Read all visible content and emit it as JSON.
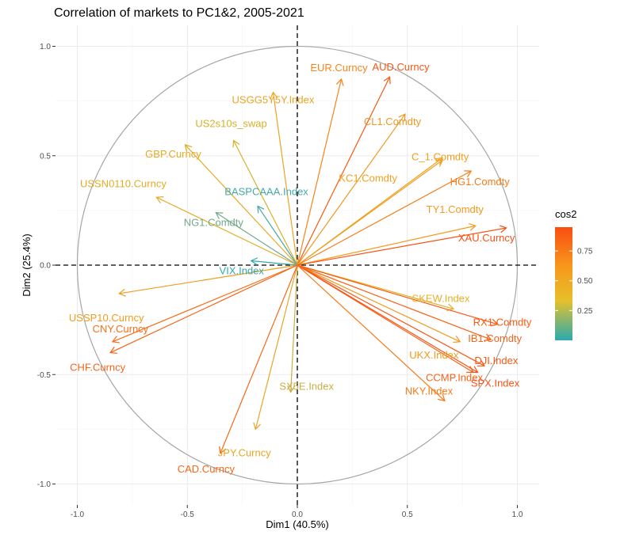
{
  "chart_data": {
    "type": "scatter",
    "subtype": "pca-correlation-circle",
    "title": "Correlation of markets to PC1&2, 2005-2021",
    "xlabel": "Dim1 (40.5%)",
    "ylabel": "Dim2 (25.4%)",
    "xlim": [
      -1.0,
      1.0
    ],
    "ylim": [
      -1.0,
      1.0
    ],
    "xticks": [
      "-1.0",
      "-0.5",
      "0.0",
      "0.5",
      "1.0"
    ],
    "yticks": [
      "-1.0",
      "-0.5",
      "0.0",
      "0.5",
      "1.0"
    ],
    "grid": true,
    "unit_circle": true,
    "reference_lines": [
      "x=0 dashed",
      "y=0 dashed"
    ],
    "color_scale": {
      "title": "cos2",
      "ticks": [
        "0.25",
        "0.50",
        "0.75"
      ],
      "gradient": [
        "#2aaab0",
        "#e6c02b",
        "#f7981c",
        "#f94d12"
      ],
      "range": [
        0.0,
        0.95
      ]
    },
    "legend_placement": "right",
    "points": [
      {
        "name": "EUR.Curncy",
        "x": 0.2,
        "y": 0.85,
        "cos2": 0.77,
        "color": "#f8841a"
      },
      {
        "name": "AUD.Curncy",
        "x": 0.42,
        "y": 0.86,
        "cos2": 0.92,
        "color": "#f95714"
      },
      {
        "name": "USGG5Y5Y.Index",
        "x": -0.11,
        "y": 0.79,
        "cos2": 0.64,
        "color": "#eca323"
      },
      {
        "name": "CL1.Comdty",
        "x": 0.49,
        "y": 0.69,
        "cos2": 0.72,
        "color": "#f0981f"
      },
      {
        "name": "US2s10s_swap",
        "x": -0.29,
        "y": 0.57,
        "cos2": 0.41,
        "color": "#d8b02b"
      },
      {
        "name": "C_1.Comdty",
        "x": 0.66,
        "y": 0.49,
        "cos2": 0.68,
        "color": "#f0a020"
      },
      {
        "name": "GBP.Curncy",
        "x": -0.51,
        "y": 0.55,
        "cos2": 0.56,
        "color": "#e7aa26"
      },
      {
        "name": "KC1.Comdty",
        "x": 0.66,
        "y": 0.48,
        "cos2": 0.66,
        "color": "#efa121"
      },
      {
        "name": "HG1.Comdty",
        "x": 0.79,
        "y": 0.43,
        "cos2": 0.81,
        "color": "#f77b18"
      },
      {
        "name": "USSN0110.Curncy",
        "x": -0.64,
        "y": 0.31,
        "cos2": 0.51,
        "color": "#e4ad28"
      },
      {
        "name": "BASPCAAA.Index",
        "x": -0.18,
        "y": 0.27,
        "cos2": 0.1,
        "color": "#47a9a6"
      },
      {
        "name": "NG1.Comdty",
        "x": -0.37,
        "y": 0.24,
        "cos2": 0.19,
        "color": "#74a98c"
      },
      {
        "name": "TY1.Comdty",
        "x": 0.81,
        "y": 0.18,
        "cos2": 0.69,
        "color": "#f39a1e"
      },
      {
        "name": "XAU.Curncy",
        "x": 0.95,
        "y": 0.17,
        "cos2": 0.93,
        "color": "#f95114"
      },
      {
        "name": "VIX.Index",
        "x": -0.21,
        "y": 0.02,
        "cos2": 0.05,
        "color": "#30a8ae"
      },
      {
        "name": "USSP10.Curncy",
        "x": -0.81,
        "y": -0.13,
        "cos2": 0.67,
        "color": "#f09d1f"
      },
      {
        "name": "SKEW.Index",
        "x": 0.71,
        "y": -0.2,
        "cos2": 0.55,
        "color": "#e6b026"
      },
      {
        "name": "RX1.Comdty",
        "x": 0.91,
        "y": -0.27,
        "cos2": 0.9,
        "color": "#f95a14"
      },
      {
        "name": "IB1.Comdty",
        "x": 0.88,
        "y": -0.34,
        "cos2": 0.88,
        "color": "#f86316"
      },
      {
        "name": "CNY.Curncy",
        "x": -0.84,
        "y": -0.35,
        "cos2": 0.84,
        "color": "#f86f17"
      },
      {
        "name": "UKX.Index",
        "x": 0.74,
        "y": -0.35,
        "cos2": 0.69,
        "color": "#f19b1f"
      },
      {
        "name": "CHF.Curncy",
        "x": -0.85,
        "y": -0.4,
        "cos2": 0.87,
        "color": "#f86316"
      },
      {
        "name": "DJI.Index",
        "x": 0.85,
        "y": -0.46,
        "cos2": 0.92,
        "color": "#f95714"
      },
      {
        "name": "CCMP.Index",
        "x": 0.8,
        "y": -0.49,
        "cos2": 0.88,
        "color": "#f86116"
      },
      {
        "name": "SPX.Index",
        "x": 0.82,
        "y": -0.49,
        "cos2": 0.93,
        "color": "#f95114"
      },
      {
        "name": "NKY.Index",
        "x": 0.67,
        "y": -0.62,
        "cos2": 0.82,
        "color": "#f77a18"
      },
      {
        "name": "SX5E.Index",
        "x": -0.03,
        "y": -0.58,
        "cos2": 0.34,
        "color": "#c9ae45"
      },
      {
        "name": "JPY.Curncy",
        "x": -0.19,
        "y": -0.75,
        "cos2": 0.6,
        "color": "#e8a524"
      },
      {
        "name": "CAD.Curncy",
        "x": -0.35,
        "y": -0.86,
        "cos2": 0.86,
        "color": "#f86716"
      }
    ]
  }
}
